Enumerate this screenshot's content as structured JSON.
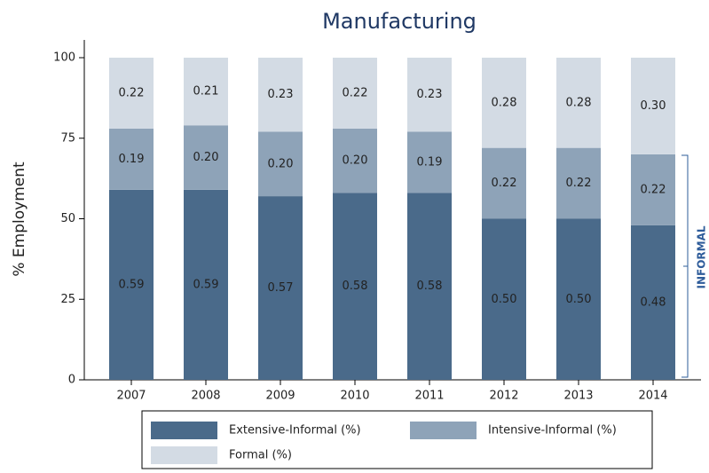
{
  "chart_data": {
    "type": "stacked_bar",
    "title": "Manufacturing",
    "y_label": "% Employment",
    "annotation": "INFORMAL",
    "categories": [
      "2007",
      "2008",
      "2009",
      "2010",
      "2011",
      "2012",
      "2013",
      "2014"
    ],
    "series": [
      {
        "name": "Extensive-Informal (%)",
        "color": "#4a6a8a",
        "values": [
          59,
          59,
          57,
          58,
          58,
          50,
          50,
          48
        ],
        "value_labels": [
          "0.59",
          "0.59",
          "0.57",
          "0.58",
          "0.58",
          "0.50",
          "0.50",
          "0.48"
        ]
      },
      {
        "name": "Intensive-Informal (%)",
        "color": "#8ea3b8",
        "values": [
          19,
          20,
          20,
          20,
          19,
          22,
          22,
          22
        ],
        "value_labels": [
          "0.19",
          "0.20",
          "0.20",
          "0.20",
          "0.19",
          "0.22",
          "0.22",
          "0.22"
        ]
      },
      {
        "name": "Formal (%)",
        "color": "#d3dbe4",
        "values": [
          22,
          21,
          23,
          22,
          23,
          28,
          28,
          30
        ],
        "value_labels": [
          "0.22",
          "0.21",
          "0.23",
          "0.22",
          "0.23",
          "0.28",
          "0.28",
          "0.30"
        ]
      }
    ],
    "ylim": [
      0,
      100
    ],
    "yticks": [
      0,
      25,
      50,
      75,
      100
    ]
  }
}
